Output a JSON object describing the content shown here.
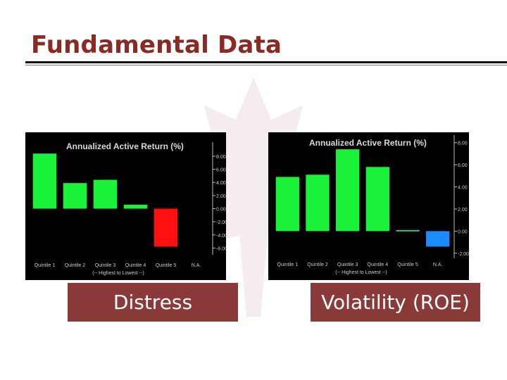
{
  "slide": {
    "title": "Fundamental Data",
    "caption_left": "Distress",
    "caption_right": "Volatility (ROE)"
  },
  "chart_data": [
    {
      "type": "bar",
      "title": "Annualized Active Return (%)",
      "categories": [
        "Quintile 1",
        "Quintile 2",
        "Quintile 3",
        "Quintile 4",
        "Quintile 5",
        "N.A."
      ],
      "values": [
        8.4,
        3.9,
        4.4,
        0.6,
        -5.8,
        null
      ],
      "xlabel": "(-- Highest to Lowest --)",
      "ylim": [
        -6.6,
        9.5
      ],
      "yticks": [
        8,
        6,
        4,
        2,
        0,
        -2,
        -4,
        -6
      ],
      "ytick_labels": [
        "8.00",
        "6.00",
        "4.00",
        "2.00",
        "0.00",
        "-2.00",
        "-4.00",
        "-6.00"
      ],
      "colors": {
        "positive": "#19f238",
        "negative": "#ff1010",
        "background": "#000000"
      }
    },
    {
      "type": "bar",
      "title": "Annualized Active Return (%)",
      "categories": [
        "Quintile 1",
        "Quintile 2",
        "Quintile 3",
        "Quintile 4",
        "Quintile 5",
        "N.A."
      ],
      "values": [
        4.9,
        5.1,
        7.4,
        5.8,
        0.1,
        -1.4
      ],
      "xlabel": "(-- Highest to Lowest --)",
      "ylim": [
        -2.2,
        8.3
      ],
      "yticks": [
        8,
        6,
        4,
        2,
        0,
        -2
      ],
      "ytick_labels": [
        "8.00",
        "6.00",
        "4.00",
        "2.00",
        "0.00",
        "-2.00"
      ],
      "colors": {
        "positive": "#19f238",
        "flat": "#19c8a0",
        "negative": "#1a8cff",
        "background": "#000000"
      }
    }
  ]
}
